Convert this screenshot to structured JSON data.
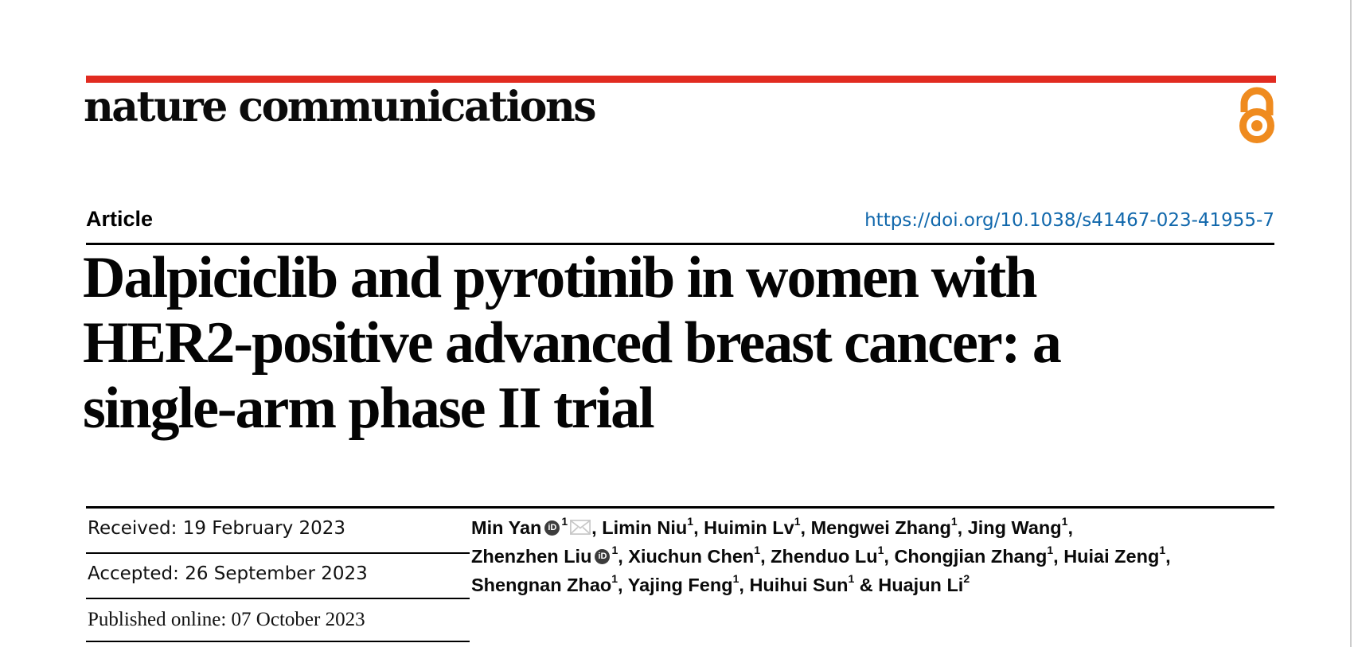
{
  "brand": {
    "name": "nature communications",
    "accent_color": "#e12b20",
    "open_access_icon": "open-access-padlock",
    "open_access_color": "#ef8b1f"
  },
  "header": {
    "article_label": "Article",
    "doi": "https://doi.org/10.1038/s41467-023-41955-7",
    "doi_color": "#1168ac"
  },
  "title": {
    "lines": [
      "Dalpiciclib and pyrotinib in women with",
      "HER2-positive advanced breast cancer: a",
      "single-arm phase II trial"
    ]
  },
  "history": {
    "received": "Received: 19 February 2023",
    "accepted": "Accepted: 26 September 2023",
    "published": "Published online: 07 October 2023"
  },
  "authors": {
    "lines": [
      [
        {
          "t": "Min Yan",
          "orcid": true,
          "sup": "1",
          "mail": true,
          "tail": ", "
        },
        {
          "t": "Limin Niu",
          "sup": "1",
          "tail": ", "
        },
        {
          "t": "Huimin Lv",
          "sup": "1",
          "tail": ", "
        },
        {
          "t": "Mengwei Zhang",
          "sup": "1",
          "tail": ", "
        },
        {
          "t": "Jing Wang",
          "sup": "1",
          "tail": ","
        }
      ],
      [
        {
          "t": "Zhenzhen Liu",
          "orcid": true,
          "sup": "1",
          "tail": ", "
        },
        {
          "t": "Xiuchun Chen",
          "sup": "1",
          "tail": ", "
        },
        {
          "t": "Zhenduo Lu",
          "sup": "1",
          "tail": ", "
        },
        {
          "t": "Chongjian Zhang",
          "sup": "1",
          "tail": ", "
        },
        {
          "t": "Huiai Zeng",
          "sup": "1",
          "tail": ","
        }
      ],
      [
        {
          "t": "Shengnan Zhao",
          "sup": "1",
          "tail": ", "
        },
        {
          "t": "Yajing Feng",
          "sup": "1",
          "tail": ", "
        },
        {
          "t": "Huihui Sun",
          "sup": "1",
          "tail": " & "
        },
        {
          "t": "Huajun Li",
          "sup": "2",
          "tail": ""
        }
      ]
    ]
  },
  "icons": {
    "orcid_text": "iD",
    "orcid_name": "orcid-icon",
    "email_name": "email-icon"
  }
}
